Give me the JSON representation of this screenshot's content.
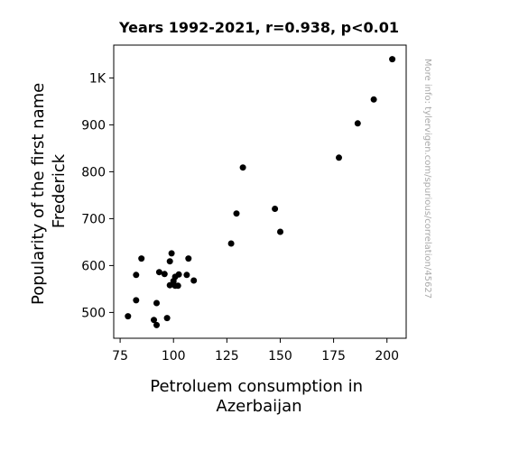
{
  "chart_data": {
    "type": "scatter",
    "title": "Years 1992-2021, r=0.938, p<0.01",
    "xlabel": [
      "Petroluem consumption in",
      "Azerbaijan"
    ],
    "ylabel": [
      "Popularity of the first name",
      "Frederick"
    ],
    "watermark": "More info: tylervigen.com/spurious/correlation/45627",
    "xlim": [
      72,
      209
    ],
    "ylim": [
      445,
      1070
    ],
    "xticks": [
      {
        "value": 75,
        "label": "75"
      },
      {
        "value": 100,
        "label": "100"
      },
      {
        "value": 125,
        "label": "125"
      },
      {
        "value": 150,
        "label": "150"
      },
      {
        "value": 175,
        "label": "175"
      },
      {
        "value": 200,
        "label": "200"
      }
    ],
    "yticks": [
      {
        "value": 500,
        "label": "500"
      },
      {
        "value": 600,
        "label": "600"
      },
      {
        "value": 700,
        "label": "700"
      },
      {
        "value": 800,
        "label": "800"
      },
      {
        "value": 900,
        "label": "900"
      },
      {
        "value": 1000,
        "label": "1K"
      }
    ],
    "marker_color": "#000000",
    "points": [
      {
        "x": 78.7,
        "y": 492
      },
      {
        "x": 82.5,
        "y": 526
      },
      {
        "x": 82.5,
        "y": 580
      },
      {
        "x": 85.0,
        "y": 615
      },
      {
        "x": 90.8,
        "y": 484
      },
      {
        "x": 92.1,
        "y": 473
      },
      {
        "x": 92.1,
        "y": 520
      },
      {
        "x": 93.3,
        "y": 586
      },
      {
        "x": 95.8,
        "y": 582
      },
      {
        "x": 97.0,
        "y": 488
      },
      {
        "x": 98.3,
        "y": 609
      },
      {
        "x": 98.3,
        "y": 558
      },
      {
        "x": 99.1,
        "y": 626
      },
      {
        "x": 100.0,
        "y": 567
      },
      {
        "x": 100.8,
        "y": 576
      },
      {
        "x": 100.8,
        "y": 557
      },
      {
        "x": 102.1,
        "y": 557
      },
      {
        "x": 102.5,
        "y": 581
      },
      {
        "x": 106.2,
        "y": 580
      },
      {
        "x": 107.0,
        "y": 615
      },
      {
        "x": 109.5,
        "y": 568
      },
      {
        "x": 127.0,
        "y": 647
      },
      {
        "x": 129.5,
        "y": 711
      },
      {
        "x": 132.5,
        "y": 809
      },
      {
        "x": 147.5,
        "y": 721
      },
      {
        "x": 150.0,
        "y": 672
      },
      {
        "x": 177.5,
        "y": 830
      },
      {
        "x": 186.3,
        "y": 903
      },
      {
        "x": 193.8,
        "y": 954
      },
      {
        "x": 202.5,
        "y": 1040
      }
    ]
  }
}
